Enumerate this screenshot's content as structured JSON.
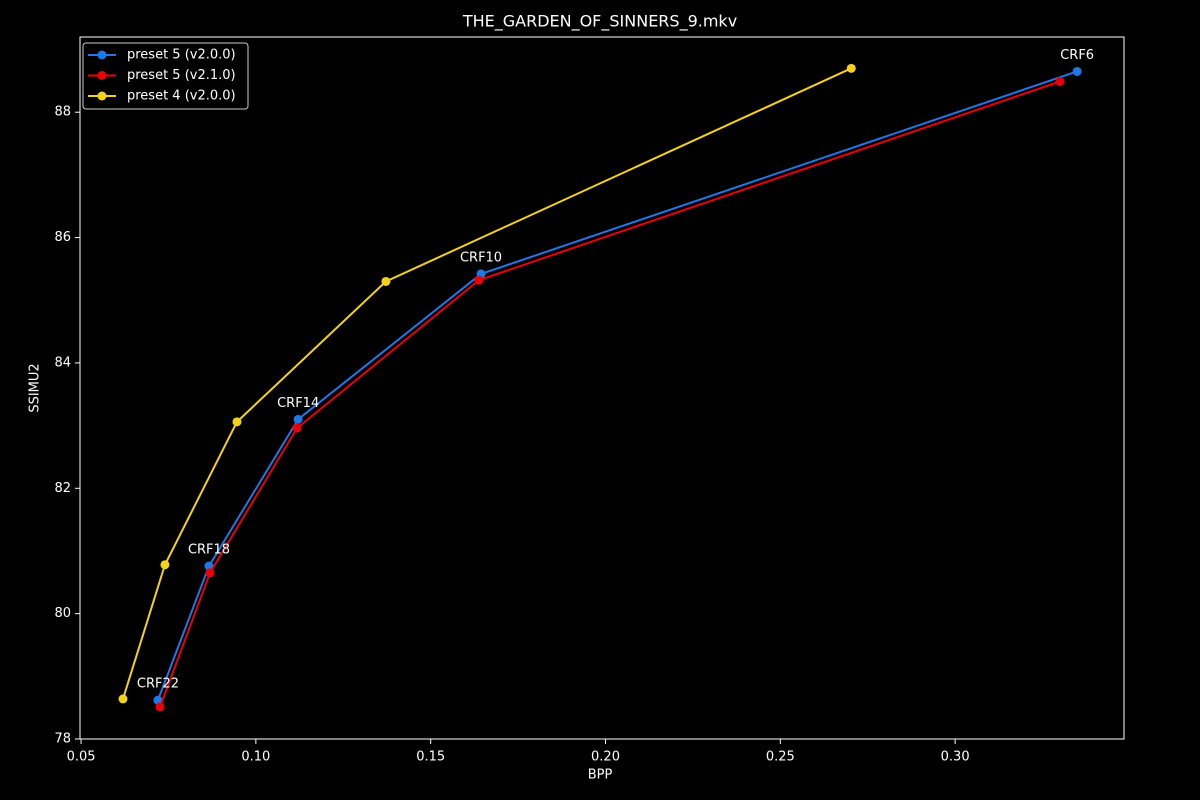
{
  "chart_data": {
    "type": "line",
    "title": "THE_GARDEN_OF_SINNERS_9.mkv",
    "x_label": "BPP",
    "y_label": "SSIMU2",
    "xlim": [
      0.0497,
      0.3483
    ],
    "ylim": [
      78,
      89.2
    ],
    "xticks": [
      0.05,
      {
        "value": 0.1,
        "label": "0.10"
      },
      0.15,
      {
        "value": 0.2,
        "label": "0.20"
      },
      0.25,
      {
        "value": 0.3,
        "label": "0.30"
      }
    ],
    "yticks": [
      78,
      80,
      82,
      84,
      86,
      88
    ],
    "legend": "upper left",
    "series": [
      {
        "name": "preset 5 (v2.0.0)",
        "color": "#1f77e8",
        "x": [
          0.072,
          0.0866,
          0.1121,
          0.1644,
          0.3349
        ],
        "values": [
          78.62,
          80.76,
          83.1,
          85.42,
          88.65
        ]
      },
      {
        "name": "preset 5 (v2.1.0)",
        "color": "#e8000b",
        "x": [
          0.0726,
          0.0869,
          0.1118,
          0.1638,
          0.33
        ],
        "values": [
          78.51,
          80.65,
          82.96,
          85.32,
          88.49
        ]
      },
      {
        "name": "preset 4 (v2.0.0)",
        "color": "#f5d21a",
        "x": [
          0.062,
          0.074,
          0.0946,
          0.1372,
          0.2703
        ],
        "values": [
          78.64,
          80.78,
          83.06,
          85.3,
          88.7
        ]
      }
    ],
    "annotations": [
      "CRF22",
      "CRF18",
      "CRF14",
      "CRF10",
      "CRF6"
    ]
  }
}
